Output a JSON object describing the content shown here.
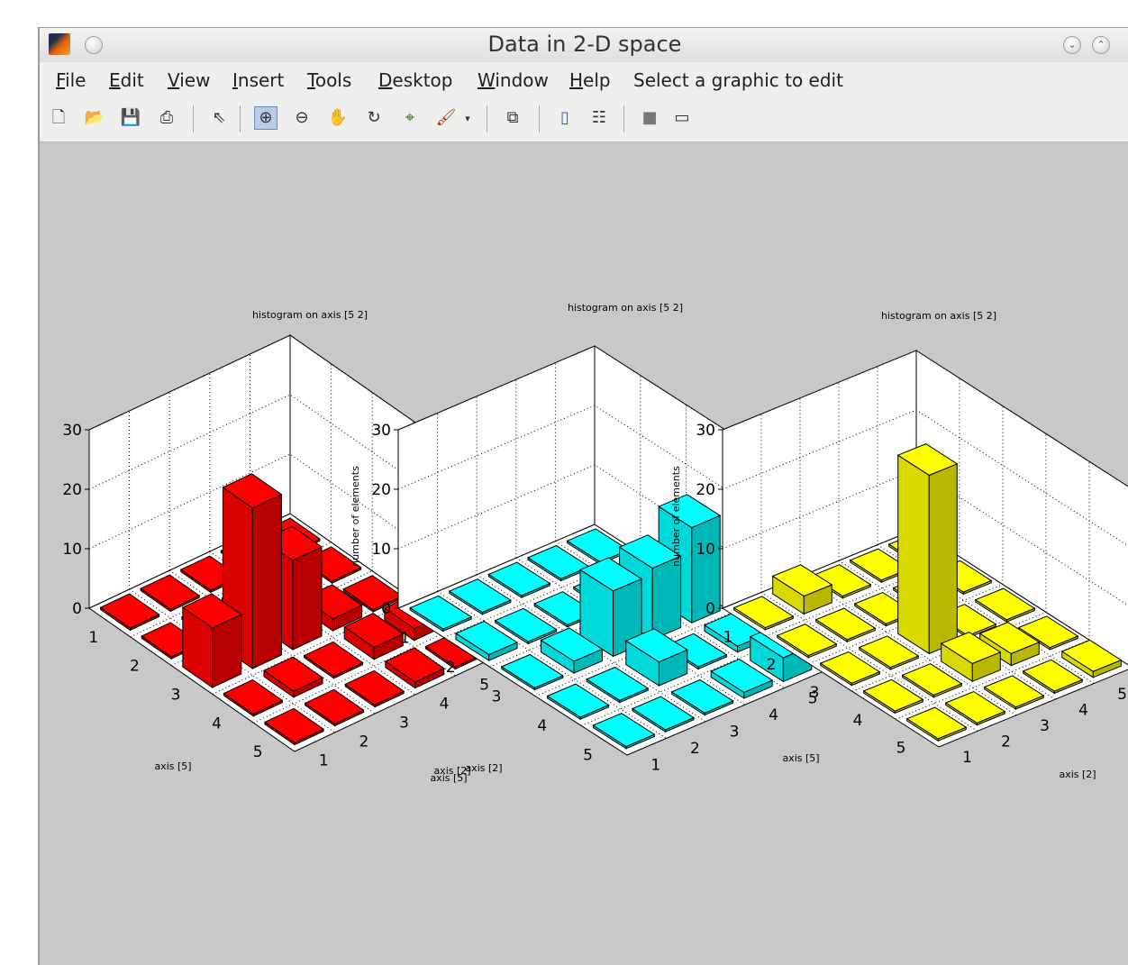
{
  "window": {
    "title": "Data in 2-D space",
    "minimize_glyph": "⌄",
    "maximize_glyph": "⌃"
  },
  "menu": {
    "items": [
      "File",
      "Edit",
      "View",
      "Insert",
      "Tools",
      "Desktop",
      "Window",
      "Help"
    ],
    "mnemonics": [
      "F",
      "E",
      "V",
      "I",
      "T",
      "D",
      "W",
      "H"
    ],
    "status": "Select a graphic to edit"
  },
  "toolbar": {
    "icons": [
      "new-figure-icon",
      "open-file-icon",
      "save-icon",
      "print-icon",
      "edit-plot-arrow-icon",
      "zoom-in-icon",
      "zoom-out-icon",
      "pan-hand-icon",
      "rotate-3d-icon",
      "data-cursor-icon",
      "brush-icon",
      "brush-dropdown-icon",
      "link-plot-icon",
      "colorbar-icon",
      "legend-icon",
      "hide-plot-tools-icon",
      "show-plot-tools-icon"
    ],
    "active": "zoom-in-icon"
  },
  "chart_data": [
    {
      "type": "bar3d",
      "title": "histogram on axis [5 2]",
      "xlabel": "axis [5]",
      "ylabel": "axis [2]",
      "zlabel": "",
      "x_ticks": [
        "1",
        "2",
        "3",
        "4",
        "5"
      ],
      "y_ticks": [
        "1",
        "2",
        "3",
        "4",
        "5"
      ],
      "z_ticks": [
        "0",
        "10",
        "20",
        "30"
      ],
      "zlim": [
        0,
        30
      ],
      "color": "#ff0000",
      "values": [
        [
          0,
          0,
          0,
          0,
          0
        ],
        [
          0,
          0,
          0,
          0,
          0
        ],
        [
          10,
          27,
          15,
          2,
          0
        ],
        [
          0,
          1,
          0,
          2,
          2
        ],
        [
          0,
          0,
          0,
          1,
          0
        ]
      ]
    },
    {
      "type": "bar3d",
      "title": "histogram on axis [5 2]",
      "xlabel": "axis [5]",
      "ylabel": "axis [2]",
      "zlabel": "number of elements",
      "x_ticks": [
        "1",
        "2",
        "3",
        "4",
        "5"
      ],
      "y_ticks": [
        "1",
        "2",
        "3",
        "4",
        "5"
      ],
      "z_ticks": [
        "0",
        "10",
        "20",
        "30"
      ],
      "zlim": [
        0,
        30
      ],
      "color": "#00ffff",
      "values": [
        [
          0,
          0,
          0,
          0,
          0
        ],
        [
          1,
          0,
          0,
          0,
          0
        ],
        [
          0,
          2,
          11,
          12,
          16
        ],
        [
          0,
          0,
          4,
          0,
          1
        ],
        [
          0,
          0,
          0,
          1,
          4
        ]
      ]
    },
    {
      "type": "bar3d",
      "title": "histogram on axis [5 2]",
      "xlabel": "axis [2]",
      "ylabel": "axis [5]",
      "zlabel": "number of elements",
      "x_ticks": [
        "1",
        "2",
        "3",
        "4",
        "5"
      ],
      "y_ticks": [
        "1",
        "2",
        "3",
        "4",
        "5"
      ],
      "z_ticks": [
        "0",
        "10",
        "20",
        "30"
      ],
      "zlim": [
        0,
        30
      ],
      "color": "#ffff00",
      "values": [
        [
          0,
          3,
          0,
          0,
          0
        ],
        [
          0,
          0,
          0,
          0,
          0
        ],
        [
          0,
          0,
          30,
          0,
          0
        ],
        [
          0,
          0,
          3,
          2,
          0
        ],
        [
          0,
          0,
          0,
          0,
          1
        ]
      ]
    }
  ]
}
